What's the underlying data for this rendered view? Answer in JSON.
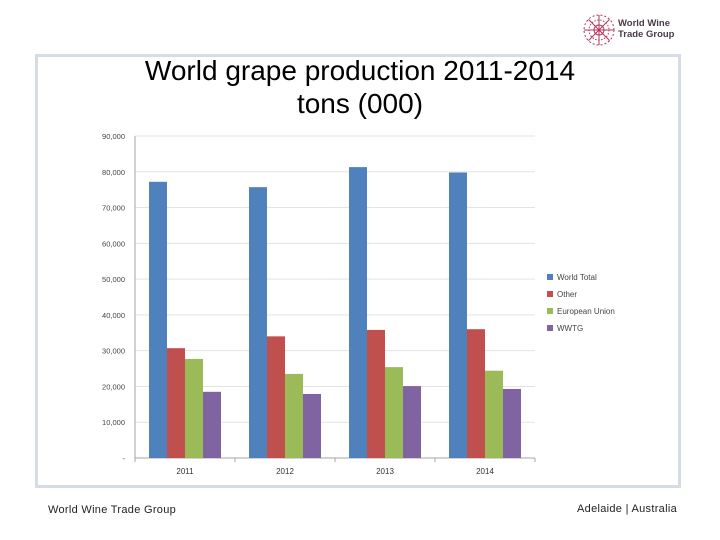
{
  "logo": {
    "line1": "World Wine",
    "line2": "Trade Group"
  },
  "footer": {
    "left": "World Wine Trade Group",
    "right": "Adelaide | Australia"
  },
  "chart_data": {
    "type": "bar",
    "title_line1": "World grape production 2011-2014",
    "title_line2": "tons (000)",
    "categories": [
      "2011",
      "2012",
      "2013",
      "2014"
    ],
    "series": [
      {
        "name": "World Total",
        "color": "#4f81bd",
        "values": [
          77200,
          75700,
          81300,
          79800
        ]
      },
      {
        "name": "Other",
        "color": "#c0504d",
        "values": [
          30700,
          34000,
          35800,
          36000
        ]
      },
      {
        "name": "European Union",
        "color": "#9bbb59",
        "values": [
          27700,
          23500,
          25400,
          24400
        ]
      },
      {
        "name": "WWTG",
        "color": "#8064a2",
        "values": [
          18500,
          17900,
          20100,
          19300
        ]
      }
    ],
    "ylim": [
      0,
      90000
    ],
    "yticks": [
      0,
      10000,
      20000,
      30000,
      40000,
      50000,
      60000,
      70000,
      80000,
      90000
    ],
    "ytick_labels": [
      "-",
      "10,000",
      "20,000",
      "30,000",
      "40,000",
      "50,000",
      "60,000",
      "70,000",
      "80,000",
      "90,000"
    ],
    "xlabel": "",
    "ylabel": "",
    "legend": "right"
  }
}
